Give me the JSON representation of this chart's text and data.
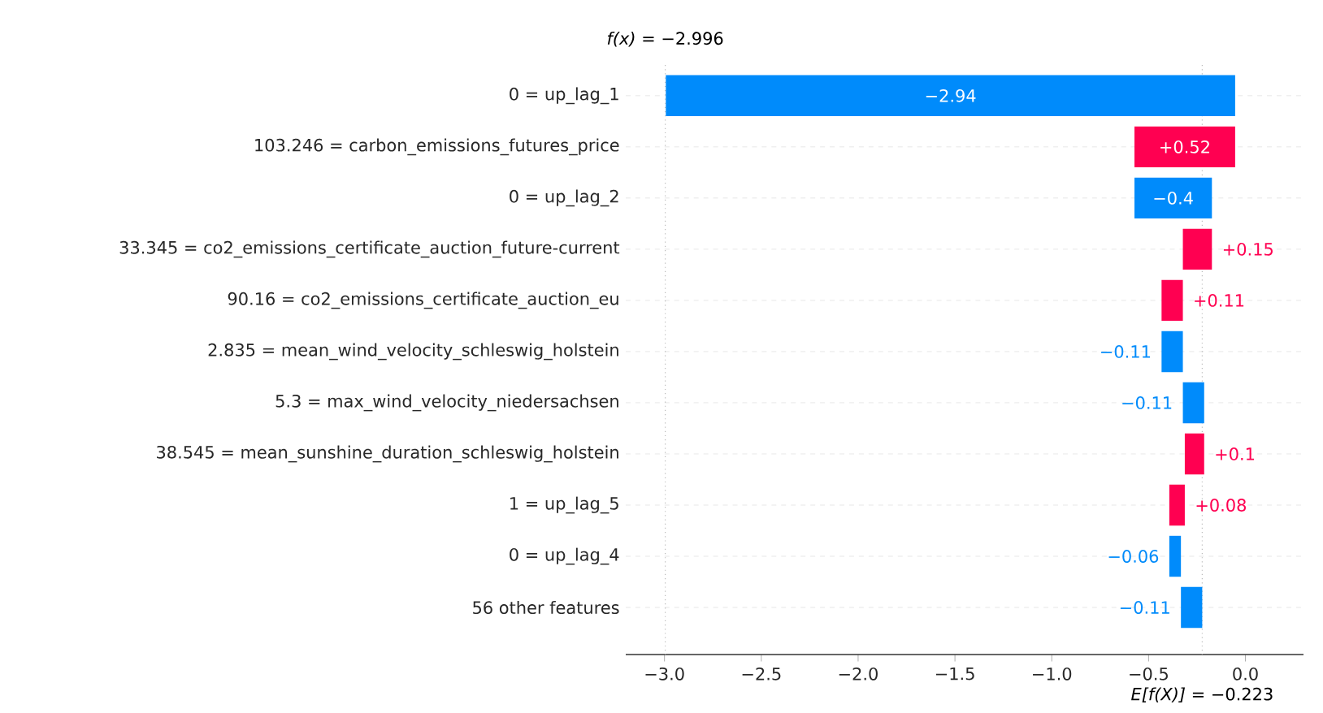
{
  "chart_data": {
    "type": "bar",
    "orientation": "horizontal",
    "categories": [
      "0 = up_lag_1",
      "103.246 = carbon_emissions_futures_price",
      "0 = up_lag_2",
      "33.345 = co2_emissions_certificate_auction_future-current",
      "90.16 = co2_emissions_certificate_auction_eu",
      "2.835 = mean_wind_velocity_schleswig_holstein",
      "5.3 = max_wind_velocity_niedersachsen",
      "38.545 = mean_sunshine_duration_schleswig_holstein",
      "1 = up_lag_5",
      "0 = up_lag_4",
      "56 other features"
    ],
    "values": [
      -2.94,
      0.52,
      -0.4,
      0.15,
      0.11,
      -0.11,
      -0.11,
      0.1,
      0.08,
      -0.06,
      -0.11
    ],
    "base": [
      -0.053,
      -0.573,
      -0.173,
      -0.323,
      -0.433,
      -0.323,
      -0.213,
      -0.313,
      -0.393,
      -0.333,
      -0.223
    ],
    "colors": [
      "#008bfb",
      "#ff0051",
      "#008bfb",
      "#ff0051",
      "#ff0051",
      "#008bfb",
      "#008bfb",
      "#ff0051",
      "#ff0051",
      "#008bfb",
      "#008bfb"
    ],
    "value_labels": [
      "−2.94",
      "+0.52",
      "−0.4",
      "+0.15",
      "+0.11",
      "−0.11",
      "−0.11",
      "+0.1",
      "+0.08",
      "−0.06",
      "−0.11"
    ],
    "xlim": [
      -3.2,
      0.3
    ],
    "xticks": [
      {
        "value": -3.0,
        "label": "−3.0"
      },
      {
        "value": -2.5,
        "label": "−2.5"
      },
      {
        "value": -2.0,
        "label": "−2.0"
      },
      {
        "value": -1.5,
        "label": "−1.5"
      },
      {
        "value": -1.0,
        "label": "−1.0"
      },
      {
        "value": -0.5,
        "label": "−0.5"
      },
      {
        "value": 0.0,
        "label": "0.0"
      }
    ],
    "ref_lines": [
      {
        "axis": "x",
        "value": -2.996,
        "label": "*f(x)* = −2.996",
        "color": "#bbbbbb",
        "line_style": "dotted"
      },
      {
        "axis": "x",
        "value": -0.223,
        "label": "*E[f(X)]* = −0.223",
        "color": "#bbbbbb",
        "line_style": "dotted"
      }
    ],
    "grid": "y"
  }
}
